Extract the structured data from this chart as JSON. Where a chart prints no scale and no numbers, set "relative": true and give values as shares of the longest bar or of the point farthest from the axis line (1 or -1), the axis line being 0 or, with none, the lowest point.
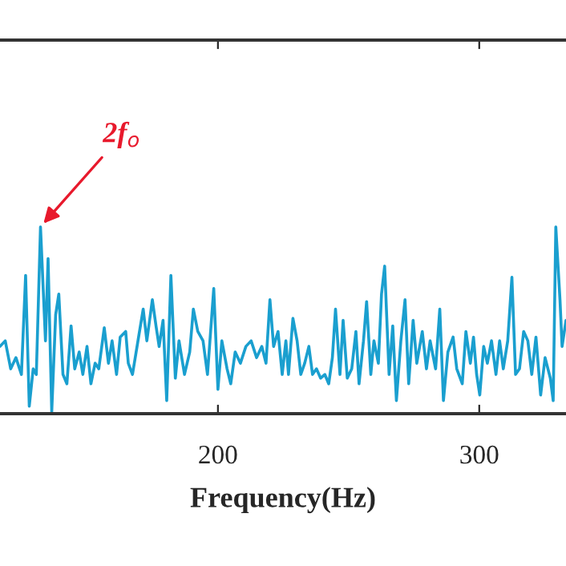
{
  "chart_data": {
    "type": "line",
    "relative": true,
    "xlabel": "Frequency(Hz)",
    "xlim": [
      116.6,
      333.2
    ],
    "xticks": [
      200,
      300
    ],
    "grid": false,
    "legend": false,
    "marker": "none",
    "line_style": "solid",
    "annotations": [
      {
        "text": "2f$_{o}$",
        "x": 132.1,
        "y": 1.0
      }
    ],
    "series": [
      {
        "color": "#1a9fcf",
        "x": [
          116.6,
          118.6,
          120.7,
          122.7,
          124.8,
          126.4,
          127.8,
          129.3,
          130.5,
          132.1,
          134.0,
          135.0,
          136.4,
          137.9,
          139.1,
          140.7,
          142.2,
          143.8,
          145.2,
          146.9,
          148.3,
          149.9,
          151.4,
          153.0,
          154.4,
          156.5,
          158.1,
          159.5,
          161.2,
          162.6,
          164.7,
          165.7,
          167.3,
          169.4,
          171.4,
          172.8,
          174.9,
          176.3,
          177.5,
          179.0,
          180.4,
          182.0,
          183.7,
          185.1,
          187.2,
          189.2,
          190.6,
          192.3,
          194.3,
          196.0,
          198.4,
          200.0,
          201.5,
          203.5,
          204.9,
          206.6,
          208.6,
          210.7,
          212.7,
          214.8,
          216.8,
          218.4,
          219.9,
          221.3,
          223.0,
          224.6,
          226.0,
          227.0,
          228.7,
          230.3,
          231.7,
          233.2,
          234.8,
          236.2,
          237.7,
          239.3,
          240.9,
          242.4,
          243.8,
          245.0,
          246.7,
          247.9,
          249.5,
          251.2,
          252.8,
          254.0,
          255.7,
          256.9,
          258.5,
          259.7,
          261.4,
          262.6,
          263.8,
          265.5,
          266.9,
          268.3,
          270.0,
          271.6,
          273.0,
          274.7,
          276.1,
          278.2,
          279.8,
          281.2,
          283.3,
          284.9,
          286.3,
          288.0,
          290.0,
          291.4,
          293.5,
          294.9,
          296.6,
          297.8,
          299.0,
          300.2,
          301.7,
          303.1,
          304.7,
          306.4,
          307.8,
          309.2,
          310.9,
          312.5,
          313.9,
          315.4,
          317.0,
          318.6,
          320.1,
          321.7,
          323.5,
          325.2,
          327.2,
          328.3,
          329.3,
          330.9,
          331.7,
          333.2
        ],
        "values": [
          0.36,
          0.39,
          0.24,
          0.3,
          0.21,
          0.74,
          0.04,
          0.24,
          0.21,
          1.0,
          0.39,
          0.83,
          0.01,
          0.53,
          0.64,
          0.21,
          0.16,
          0.47,
          0.24,
          0.33,
          0.21,
          0.36,
          0.16,
          0.27,
          0.24,
          0.46,
          0.27,
          0.39,
          0.21,
          0.41,
          0.44,
          0.27,
          0.21,
          0.39,
          0.56,
          0.39,
          0.61,
          0.47,
          0.36,
          0.5,
          0.07,
          0.74,
          0.19,
          0.39,
          0.21,
          0.33,
          0.56,
          0.44,
          0.39,
          0.21,
          0.67,
          0.13,
          0.39,
          0.24,
          0.16,
          0.33,
          0.27,
          0.36,
          0.39,
          0.3,
          0.36,
          0.27,
          0.61,
          0.36,
          0.44,
          0.21,
          0.39,
          0.21,
          0.51,
          0.39,
          0.21,
          0.27,
          0.36,
          0.21,
          0.24,
          0.19,
          0.21,
          0.16,
          0.3,
          0.56,
          0.21,
          0.5,
          0.19,
          0.24,
          0.44,
          0.16,
          0.39,
          0.6,
          0.21,
          0.39,
          0.27,
          0.64,
          0.79,
          0.21,
          0.47,
          0.07,
          0.39,
          0.61,
          0.16,
          0.5,
          0.27,
          0.44,
          0.24,
          0.39,
          0.24,
          0.56,
          0.07,
          0.33,
          0.41,
          0.24,
          0.16,
          0.44,
          0.27,
          0.41,
          0.21,
          0.1,
          0.36,
          0.27,
          0.39,
          0.21,
          0.39,
          0.24,
          0.39,
          0.73,
          0.21,
          0.24,
          0.44,
          0.39,
          0.21,
          0.41,
          0.1,
          0.3,
          0.19,
          0.07,
          1.0,
          0.61,
          0.36,
          0.5
        ]
      }
    ]
  }
}
